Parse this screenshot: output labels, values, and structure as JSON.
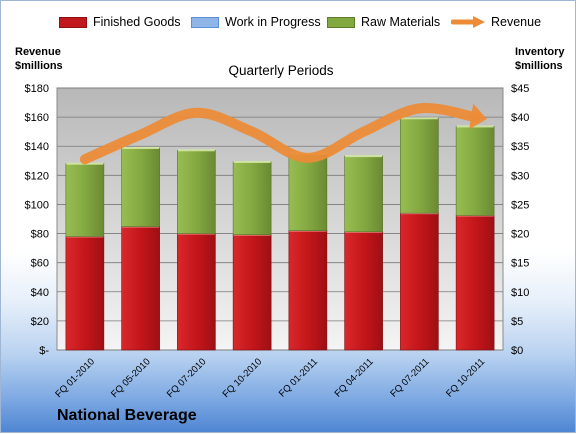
{
  "chart_data": {
    "type": "bar",
    "stacked": true,
    "title": "Quarterly Periods",
    "ylabel_left": "Revenue\n$millions",
    "ylabel_right": "Inventory\n$millions",
    "categories": [
      "FQ 01-2010",
      "FQ 05-2010",
      "FQ 07-2010",
      "FQ 10-2010",
      "FQ 01-2011",
      "FQ 04-2011",
      "FQ 07-2011",
      "FQ 10-2011"
    ],
    "left_axis": {
      "min": 0,
      "max": 180,
      "step": 20,
      "tick_labels": [
        "$-",
        "$20",
        "$40",
        "$60",
        "$80",
        "$100",
        "$120",
        "$140",
        "$160",
        "$180"
      ]
    },
    "right_axis": {
      "min": 0,
      "max": 45,
      "step": 5,
      "tick_labels": [
        "$0",
        "$5",
        "$10",
        "$15",
        "$20",
        "$25",
        "$30",
        "$35",
        "$40",
        "$45"
      ]
    },
    "grid": true,
    "legend_position": "top",
    "series": [
      {
        "name": "Finished Goods",
        "axis": "right",
        "color": "#c0181c",
        "values": [
          19.5,
          21.2,
          20.0,
          19.8,
          20.5,
          20.3,
          23.5,
          23.1
        ]
      },
      {
        "name": "Work in Progress",
        "axis": "right",
        "color": "#5b8fd8",
        "values": [
          0,
          0,
          0,
          0,
          0,
          0,
          0,
          0
        ]
      },
      {
        "name": "Raw Materials",
        "axis": "right",
        "color": "#82a840",
        "values": [
          12.5,
          13.5,
          14.3,
          12.5,
          13.2,
          13.0,
          16.3,
          15.3
        ]
      },
      {
        "name": "Revenue",
        "axis": "left",
        "type": "line",
        "color": "#ed8b36",
        "values": [
          131,
          148,
          163,
          150,
          132,
          150,
          166,
          160
        ]
      }
    ]
  },
  "brand": "National Beverage"
}
